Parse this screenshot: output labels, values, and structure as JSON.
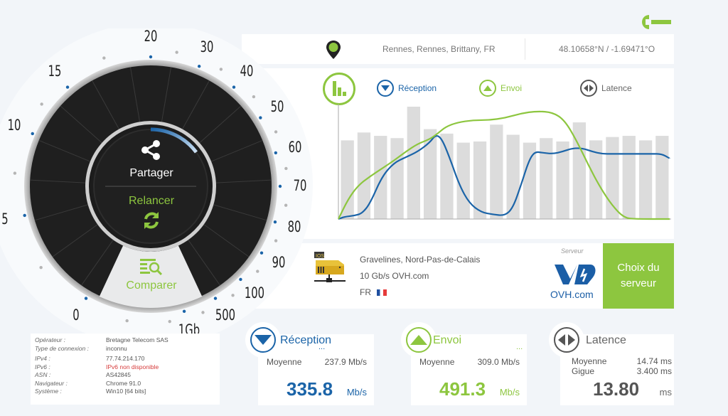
{
  "header": {
    "settings_icon": "wrench-icon"
  },
  "location": {
    "icon": "map-pin-icon",
    "city": "Rennes, Rennes, Brittany, FR",
    "coordinates": "48.10658°N / -1.69471°O"
  },
  "gauge": {
    "scale_labels": [
      "0",
      "5",
      "10",
      "15",
      "20",
      "30",
      "40",
      "50",
      "60",
      "70",
      "80",
      "90",
      "100",
      "500",
      "1Gb"
    ],
    "share_label": "Partager",
    "restart_label": "Relancer",
    "compare_label": "Comparer"
  },
  "chart_legend": {
    "toggle_icon": "bar-chart-icon",
    "download_label": "Réception",
    "upload_label": "Envoi",
    "latency_label": "Latence"
  },
  "chart_data": {
    "type": "line",
    "title": "",
    "xlabel": "",
    "ylabel": "",
    "grid": false,
    "legend_position": "top",
    "bars": {
      "name": "Latence",
      "color": "#dcdcdc",
      "values": [
        70,
        77,
        74,
        72,
        100,
        80,
        76,
        68,
        69,
        84,
        75,
        68,
        72,
        69,
        86,
        70,
        73,
        74,
        70,
        74
      ]
    },
    "series": [
      {
        "name": "Réception",
        "color": "#1b64a8",
        "points": [
          [
            0,
            0
          ],
          [
            3,
            2
          ],
          [
            8,
            3
          ],
          [
            12,
            5
          ],
          [
            16,
            14
          ],
          [
            22,
            38
          ],
          [
            28,
            50
          ],
          [
            34,
            55
          ],
          [
            40,
            60
          ],
          [
            46,
            68
          ],
          [
            49,
            75
          ],
          [
            52,
            72
          ],
          [
            56,
            55
          ],
          [
            61,
            30
          ],
          [
            66,
            14
          ],
          [
            72,
            6
          ],
          [
            78,
            4
          ],
          [
            84,
            3
          ],
          [
            88,
            10
          ],
          [
            92,
            30
          ],
          [
            96,
            52
          ],
          [
            99,
            60
          ],
          [
            103,
            59
          ],
          [
            108,
            58
          ],
          [
            113,
            60
          ],
          [
            118,
            63
          ],
          [
            123,
            63
          ],
          [
            128,
            60
          ],
          [
            133,
            58
          ],
          [
            138,
            58
          ],
          [
            143,
            58
          ],
          [
            148,
            58
          ],
          [
            153,
            58
          ],
          [
            158,
            58
          ],
          [
            163,
            58
          ],
          [
            167,
            54
          ]
        ]
      },
      {
        "name": "Envoi",
        "color": "#8dc63f",
        "points": [
          [
            0,
            0
          ],
          [
            5,
            18
          ],
          [
            10,
            30
          ],
          [
            16,
            38
          ],
          [
            22,
            45
          ],
          [
            28,
            52
          ],
          [
            34,
            60
          ],
          [
            40,
            67
          ],
          [
            46,
            71
          ],
          [
            50,
            76
          ],
          [
            54,
            82
          ],
          [
            60,
            86
          ],
          [
            68,
            88
          ],
          [
            76,
            88
          ],
          [
            84,
            90
          ],
          [
            92,
            94
          ],
          [
            100,
            96
          ],
          [
            108,
            95
          ],
          [
            114,
            88
          ],
          [
            120,
            70
          ],
          [
            126,
            48
          ],
          [
            132,
            28
          ],
          [
            138,
            12
          ],
          [
            144,
            1
          ],
          [
            150,
            0
          ],
          [
            167,
            0
          ]
        ]
      }
    ]
  },
  "server": {
    "location": "Gravelines, Nord-Pas-de-Calais",
    "provider": "10 Gb/s OVH.com",
    "country": "FR",
    "label": "Serveur",
    "logo_text": "OVH.com",
    "choose_label_line1": "Choix du",
    "choose_label_line2": "serveur"
  },
  "connection_info": [
    {
      "key": "Opérateur :",
      "value": "Bretagne Telecom SAS"
    },
    {
      "key": "Type de connexion :",
      "value": "inconnu"
    },
    {
      "key": "IPv4 :",
      "value": "77.74.214.170"
    },
    {
      "key": "IPv6 :",
      "value": "IPv6 non disponible",
      "error": true
    },
    {
      "key": "ASN :",
      "value": "AS42845"
    },
    {
      "key": "Navigateur :",
      "value": "Chrome 91.0"
    },
    {
      "key": "Système :",
      "value": "Win10 [64 bits]"
    }
  ],
  "results": {
    "download": {
      "title": "Réception",
      "more": "...",
      "avg_label": "Moyenne",
      "avg_value": "237.9 Mb/s",
      "value": "335.8",
      "unit": "Mb/s",
      "color": "#1b64a8"
    },
    "upload": {
      "title": "Envoi",
      "more": "...",
      "avg_label": "Moyenne",
      "avg_value": "309.0 Mb/s",
      "value": "491.3",
      "unit": "Mb/s",
      "color": "#8dc63f"
    },
    "latency": {
      "title": "Latence",
      "avg_label": "Moyenne",
      "avg_value": "14.74 ms",
      "jitter_label": "Gigue",
      "jitter_value": "3.400 ms",
      "value": "13.80",
      "unit": "ms",
      "color": "#555555"
    }
  }
}
